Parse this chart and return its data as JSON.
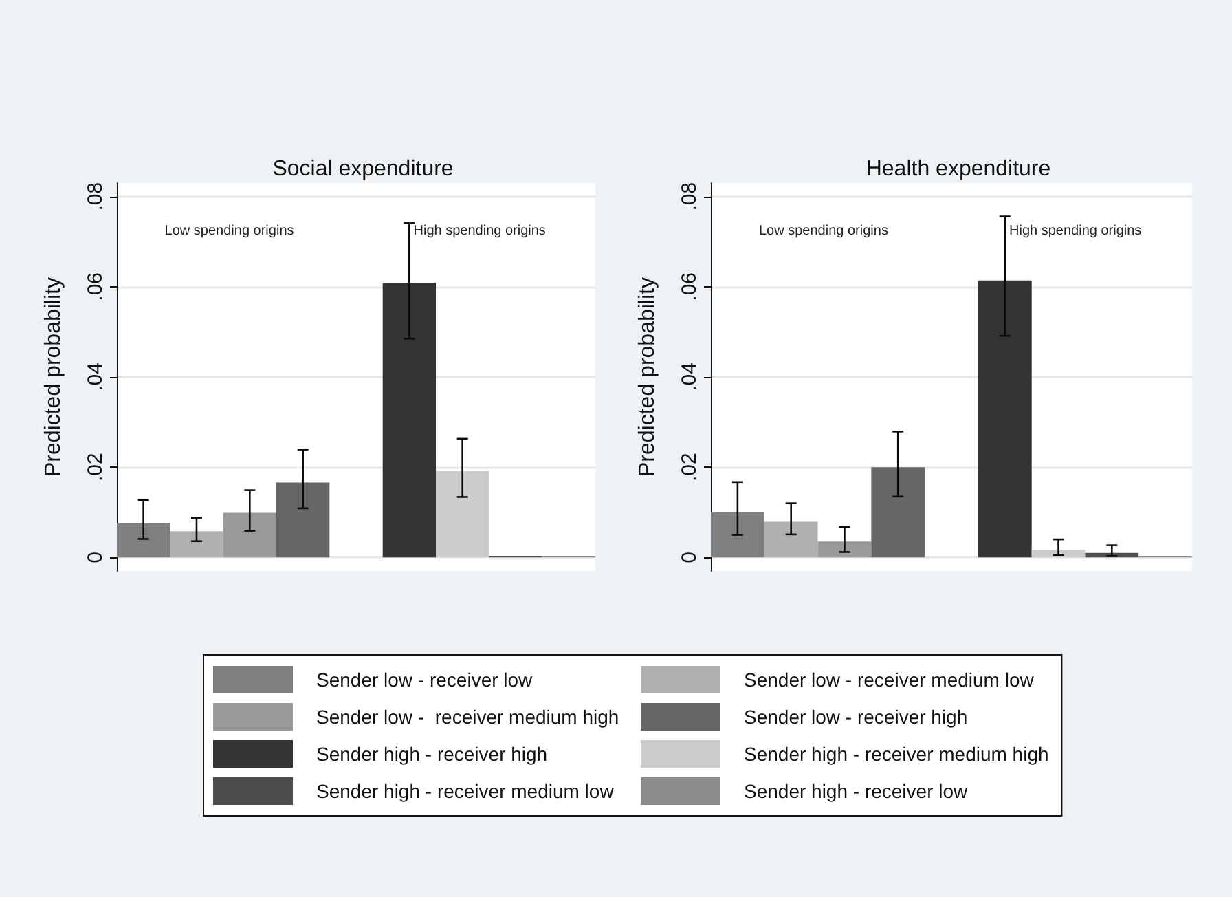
{
  "chart_data": [
    {
      "type": "bar",
      "title": "Social expenditure",
      "ylabel": "Predicted probability",
      "annotations": [
        "Low spending origins",
        "High spending origins"
      ],
      "categories": [
        null,
        null,
        null,
        null,
        null,
        null,
        null,
        null,
        null
      ],
      "ylim": [
        -0.003,
        0.083
      ],
      "yticks": [
        0,
        {
          "value": 0.02,
          "label": ".02"
        },
        {
          "value": 0.04,
          "label": ".04"
        },
        {
          "value": 0.06,
          "label": ".06"
        },
        {
          "value": 0.08,
          "label": ".08"
        }
      ],
      "grid": "y",
      "tick_labels": "y",
      "legend": "bottom",
      "series": [
        {
          "name": "Sender low - receiver low",
          "color": "#7f7f7f",
          "values": [
            0.0076,
            null,
            null,
            null,
            null,
            null,
            null,
            null,
            null
          ],
          "errors": [
            [
              0.0041,
              0.0127
            ],
            null,
            null,
            null,
            null,
            null,
            null,
            null,
            null
          ]
        },
        {
          "color": "#b0b0b0",
          "values": [
            null,
            0.0058,
            null,
            null,
            null,
            null,
            null,
            null,
            null
          ],
          "errors": [
            null,
            [
              0.0036,
              0.0088
            ],
            null,
            null,
            null,
            null,
            null,
            null,
            null
          ]
        },
        {
          "name": "Sender low -  receiver medium high",
          "color": "#999999",
          "values": [
            null,
            null,
            0.0099,
            null,
            null,
            null,
            null,
            null,
            null
          ],
          "errors": [
            null,
            null,
            [
              0.0059,
              0.0149
            ],
            null,
            null,
            null,
            null,
            null,
            null
          ]
        },
        {
          "color": "#666666",
          "values": [
            null,
            null,
            null,
            0.0166,
            null,
            null,
            null,
            null,
            null
          ],
          "errors": [
            null,
            null,
            null,
            [
              0.0109,
              0.0239
            ],
            null,
            null,
            null,
            null,
            null
          ]
        },
        {
          "name": "Sender high - receiver high",
          "color": "#333333",
          "values": [
            null,
            null,
            null,
            null,
            null,
            0.0609,
            null,
            null,
            null
          ],
          "errors": [
            null,
            null,
            null,
            null,
            null,
            [
              0.0485,
              0.0741
            ],
            null,
            null,
            null
          ]
        },
        {
          "color": "#cccccc",
          "values": [
            null,
            null,
            null,
            null,
            null,
            null,
            0.0192,
            null,
            null
          ],
          "errors": [
            null,
            null,
            null,
            null,
            null,
            null,
            [
              0.0134,
              0.0263
            ],
            null,
            null
          ]
        },
        {
          "name": "Sender high - receiver medium low",
          "color": "#4d4d4d",
          "values": [
            null,
            null,
            null,
            null,
            null,
            null,
            null,
            0.0003,
            null
          ]
        },
        {
          "color": "#8c8c8c",
          "values": [
            null,
            null,
            null,
            null,
            null,
            null,
            null,
            null,
            0.0002
          ]
        }
      ]
    },
    {
      "type": "bar",
      "title": "Health expenditure",
      "ylabel": "Predicted probability",
      "annotations": [
        "Low spending origins",
        "High spending origins"
      ],
      "categories": [
        null,
        null,
        null,
        null,
        null,
        null,
        null,
        null,
        null
      ],
      "ylim": [
        -0.003,
        0.083
      ],
      "yticks": [
        0,
        {
          "value": 0.02,
          "label": ".02"
        },
        {
          "value": 0.04,
          "label": ".04"
        },
        {
          "value": 0.06,
          "label": ".06"
        },
        {
          "value": 0.08,
          "label": ".08"
        }
      ],
      "grid": "y",
      "tick_labels": "y",
      "legend": "bottom",
      "series": [
        {
          "color": "#7f7f7f",
          "values": [
            0.01,
            null,
            null,
            null,
            null,
            null,
            null,
            null,
            null
          ],
          "errors": [
            [
              0.005,
              0.0167
            ],
            null,
            null,
            null,
            null,
            null,
            null,
            null,
            null
          ]
        },
        {
          "name": "Sender low - receiver medium low",
          "color": "#b0b0b0",
          "values": [
            null,
            0.0079,
            null,
            null,
            null,
            null,
            null,
            null,
            null
          ],
          "errors": [
            null,
            [
              0.0051,
              0.012
            ],
            null,
            null,
            null,
            null,
            null,
            null,
            null
          ]
        },
        {
          "color": "#999999",
          "values": [
            null,
            null,
            0.0035,
            null,
            null,
            null,
            null,
            null,
            null
          ],
          "errors": [
            null,
            null,
            [
              0.0012,
              0.0068
            ],
            null,
            null,
            null,
            null,
            null,
            null
          ]
        },
        {
          "name": "Sender low - receiver high",
          "color": "#666666",
          "values": [
            null,
            null,
            null,
            0.02,
            null,
            null,
            null,
            null,
            null
          ],
          "errors": [
            null,
            null,
            null,
            [
              0.0135,
              0.0279
            ],
            null,
            null,
            null,
            null,
            null
          ]
        },
        {
          "color": "#333333",
          "values": [
            null,
            null,
            null,
            null,
            null,
            0.0614,
            null,
            null,
            null
          ],
          "errors": [
            null,
            null,
            null,
            null,
            null,
            [
              0.0491,
              0.0756
            ],
            null,
            null,
            null
          ]
        },
        {
          "name": "Sender high - receiver medium high",
          "color": "#cccccc",
          "values": [
            null,
            null,
            null,
            null,
            null,
            null,
            0.0017,
            null,
            null
          ],
          "errors": [
            null,
            null,
            null,
            null,
            null,
            null,
            [
              0.0005,
              0.004
            ],
            null,
            null
          ]
        },
        {
          "color": "#4d4d4d",
          "values": [
            null,
            null,
            null,
            null,
            null,
            null,
            null,
            0.001,
            null
          ],
          "errors": [
            null,
            null,
            null,
            null,
            null,
            null,
            null,
            [
              0.0003,
              0.0027
            ],
            null
          ]
        },
        {
          "name": "Sender high - receiver low",
          "color": "#8c8c8c",
          "values": [
            null,
            null,
            null,
            null,
            null,
            null,
            null,
            null,
            0.0002
          ]
        }
      ]
    }
  ]
}
